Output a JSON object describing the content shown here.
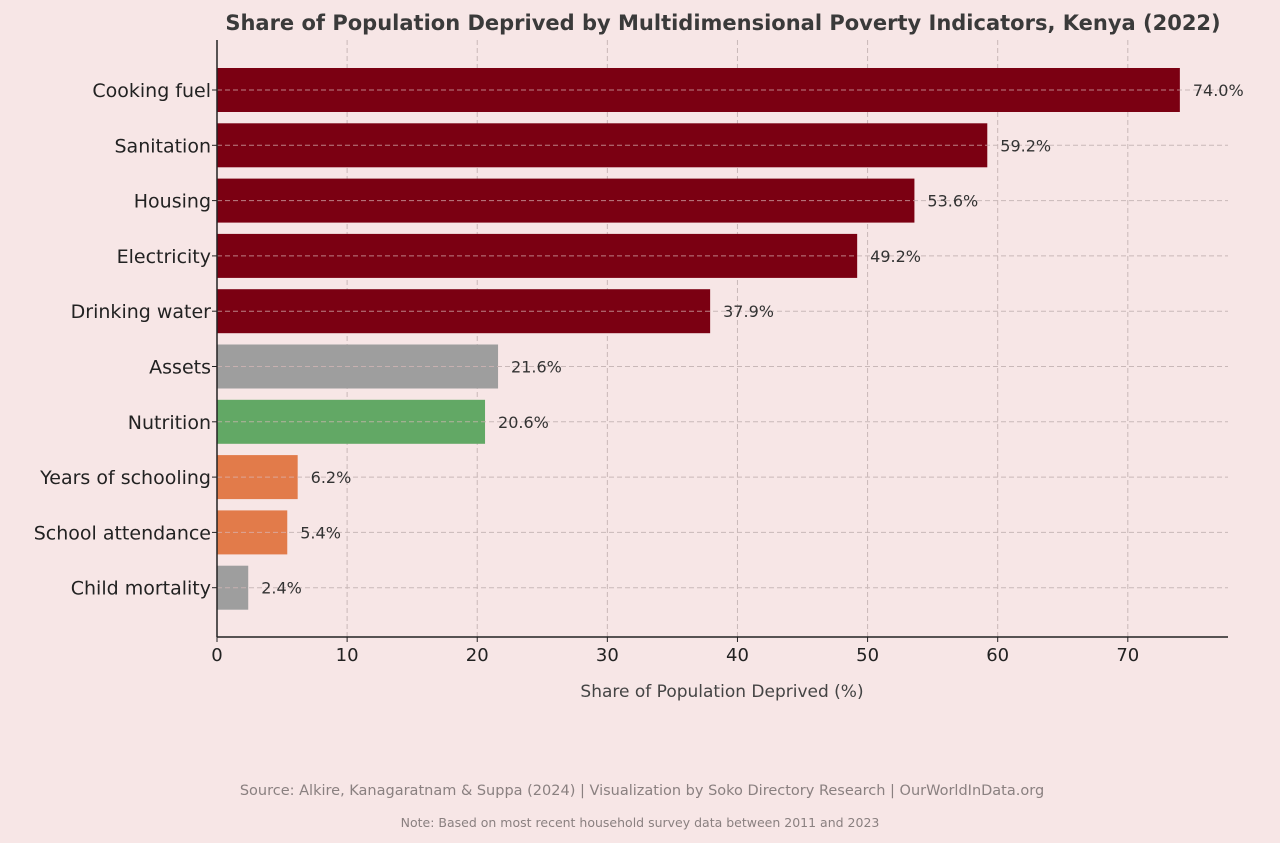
{
  "chart_data": {
    "type": "bar",
    "orientation": "horizontal",
    "title": "Share of Population Deprived by Multidimensional Poverty Indicators, Kenya (2022)",
    "xlabel": "Share of Population Deprived (%)",
    "ylabel": "",
    "xlim": [
      0,
      77.7
    ],
    "xticks": [
      0,
      10,
      20,
      30,
      40,
      50,
      60,
      70
    ],
    "grid": true,
    "categories": [
      "Cooking fuel",
      "Sanitation",
      "Housing",
      "Electricity",
      "Drinking water",
      "Assets",
      "Nutrition",
      "Years of schooling",
      "School attendance",
      "Child mortality"
    ],
    "values": [
      74.0,
      59.2,
      53.6,
      49.2,
      37.9,
      21.6,
      20.6,
      6.2,
      5.4,
      2.4
    ],
    "data_labels": [
      "74.0%",
      "59.2%",
      "53.6%",
      "49.2%",
      "37.9%",
      "21.6%",
      "20.6%",
      "6.2%",
      "5.4%",
      "2.4%"
    ],
    "bar_colors": [
      "#7b0012",
      "#7b0012",
      "#7b0012",
      "#7b0012",
      "#7b0012",
      "#9e9e9e",
      "#62a865",
      "#e27b4a",
      "#e27b4a",
      "#9e9e9e"
    ]
  },
  "footer": {
    "source": "Source: Alkire, Kanagaratnam & Suppa (2024) | Visualization by Soko Directory Research | OurWorldInData.org",
    "note": "Note: Based on most recent household survey data between 2011 and 2023"
  },
  "colors": {
    "background": "#f7e6e6",
    "grid": "#c9b8b8",
    "axis": "#222222"
  }
}
